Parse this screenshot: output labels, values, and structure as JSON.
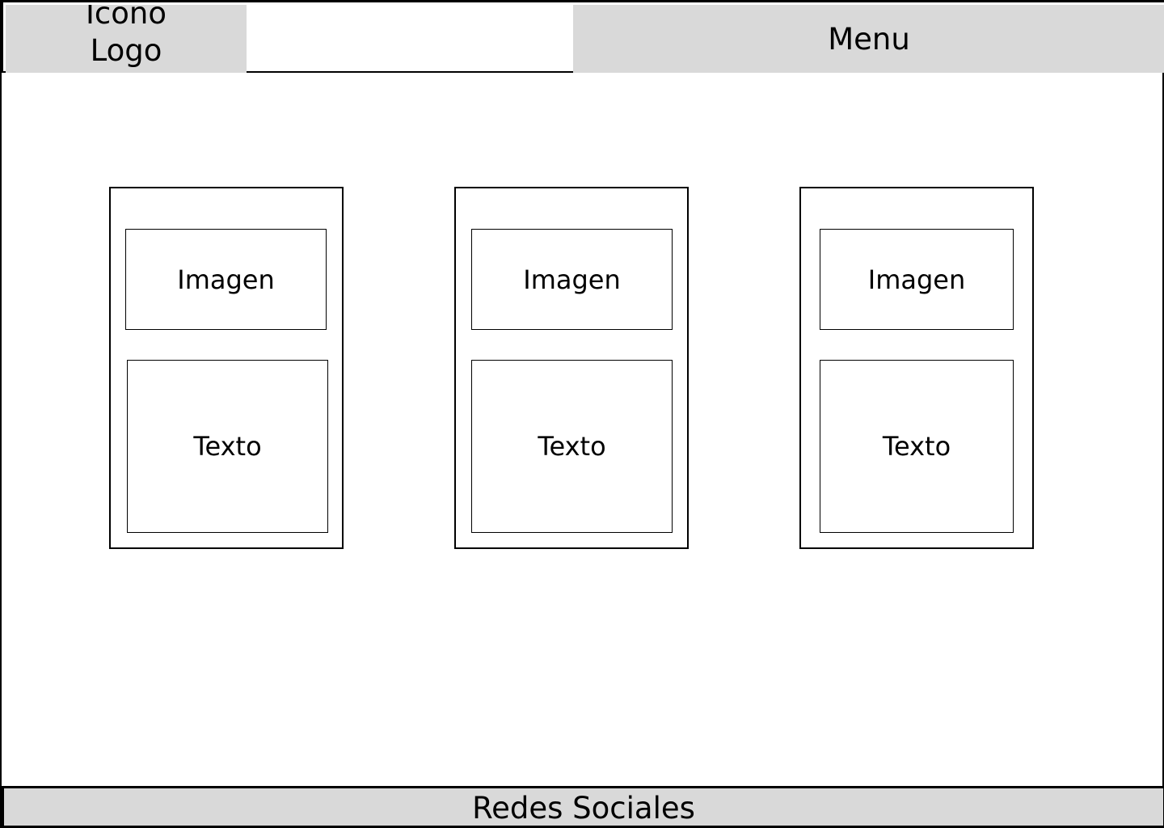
{
  "header": {
    "logo_label": "Icono Logo",
    "menu_label": "Menu"
  },
  "cards": [
    {
      "image_label": "Imagen",
      "text_label": "Texto"
    },
    {
      "image_label": "Imagen",
      "text_label": "Texto"
    },
    {
      "image_label": "Imagen",
      "text_label": "Texto"
    }
  ],
  "footer": {
    "label": "Redes Sociales"
  },
  "colors": {
    "placeholder_fill": "#d9d9d9",
    "border": "#000000",
    "background": "#ffffff"
  }
}
